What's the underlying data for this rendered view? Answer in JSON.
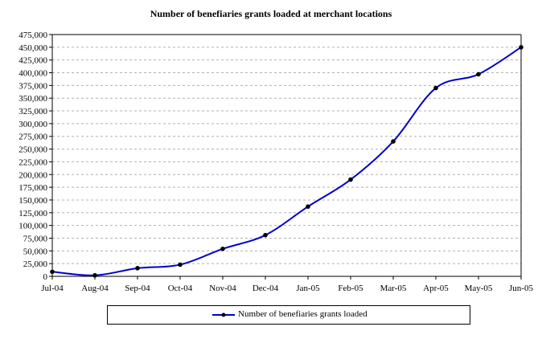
{
  "chart_data": {
    "type": "line",
    "title": "Number of benefiaries grants loaded at merchant locations",
    "xlabel": "",
    "ylabel": "",
    "categories": [
      "Jul-04",
      "Aug-04",
      "Sep-04",
      "Oct-04",
      "Nov-04",
      "Dec-04",
      "Jan-05",
      "Feb-05",
      "Mar-05",
      "Apr-05",
      "May-05",
      "Jun-05"
    ],
    "series": [
      {
        "name": "Number of benefiaries grants loaded",
        "values": [
          9000,
          2000,
          16000,
          23000,
          54000,
          81000,
          137000,
          190000,
          265000,
          370000,
          397000,
          450000
        ]
      }
    ],
    "ylim": [
      0,
      475000
    ],
    "y_ticks": [
      "0",
      "25,000",
      "50,000",
      "75,000",
      "100,000",
      "125,000",
      "150,000",
      "175,000",
      "200,000",
      "225,000",
      "250,000",
      "275,000",
      "300,000",
      "325,000",
      "350,000",
      "375,000",
      "400,000",
      "425,000",
      "450,000",
      "475,000"
    ],
    "grid": true,
    "legend_position": "bottom",
    "line_color": "#0000cc",
    "marker_color": "#000000"
  }
}
